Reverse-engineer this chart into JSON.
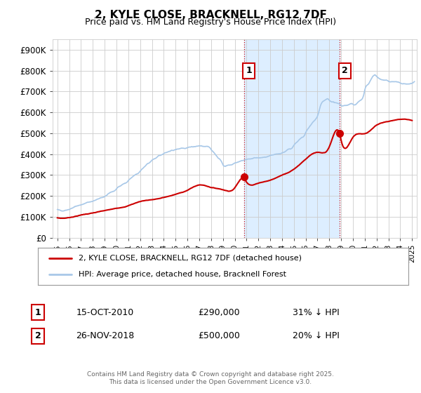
{
  "title": "2, KYLE CLOSE, BRACKNELL, RG12 7DF",
  "subtitle": "Price paid vs. HM Land Registry's House Price Index (HPI)",
  "ylim": [
    0,
    950000
  ],
  "yticks": [
    0,
    100000,
    200000,
    300000,
    400000,
    500000,
    600000,
    700000,
    800000,
    900000
  ],
  "ytick_labels": [
    "£0",
    "£100K",
    "£200K",
    "£300K",
    "£400K",
    "£500K",
    "£600K",
    "£700K",
    "£800K",
    "£900K"
  ],
  "xlim_start": 1994.6,
  "xlim_end": 2025.4,
  "hpi_color": "#a8c8e8",
  "price_color": "#cc0000",
  "purchase1_x": 2010.79,
  "purchase1_y": 290000,
  "purchase2_x": 2018.9,
  "purchase2_y": 500000,
  "shade_color": "#ddeeff",
  "legend_house": "2, KYLE CLOSE, BRACKNELL, RG12 7DF (detached house)",
  "legend_hpi": "HPI: Average price, detached house, Bracknell Forest",
  "annotation1_label": "1",
  "annotation1_date": "15-OCT-2010",
  "annotation1_price": "£290,000",
  "annotation1_pct": "31% ↓ HPI",
  "annotation2_label": "2",
  "annotation2_date": "26-NOV-2018",
  "annotation2_price": "£500,000",
  "annotation2_pct": "20% ↓ HPI",
  "footer": "Contains HM Land Registry data © Crown copyright and database right 2025.\nThis data is licensed under the Open Government Licence v3.0.",
  "background_color": "#ffffff",
  "grid_color": "#cccccc",
  "hpi_years": [
    1995.0,
    1995.1,
    1995.2,
    1995.3,
    1995.4,
    1995.5,
    1995.6,
    1995.7,
    1995.8,
    1995.9,
    1996.0,
    1996.2,
    1996.4,
    1996.6,
    1996.8,
    1997.0,
    1997.3,
    1997.6,
    1997.9,
    1998.0,
    1998.3,
    1998.6,
    1998.9,
    1999.0,
    1999.3,
    1999.6,
    1999.9,
    2000.0,
    2000.3,
    2000.6,
    2000.9,
    2001.0,
    2001.3,
    2001.6,
    2001.9,
    2002.0,
    2002.3,
    2002.6,
    2002.9,
    2003.0,
    2003.3,
    2003.6,
    2003.9,
    2004.0,
    2004.3,
    2004.6,
    2004.9,
    2005.0,
    2005.3,
    2005.6,
    2005.9,
    2006.0,
    2006.3,
    2006.6,
    2006.9,
    2007.0,
    2007.3,
    2007.6,
    2007.9,
    2008.0,
    2008.3,
    2008.6,
    2008.9,
    2009.0,
    2009.3,
    2009.6,
    2009.9,
    2010.0,
    2010.3,
    2010.6,
    2010.9,
    2011.0,
    2011.3,
    2011.6,
    2011.9,
    2012.0,
    2012.3,
    2012.6,
    2012.9,
    2013.0,
    2013.3,
    2013.6,
    2013.9,
    2014.0,
    2014.3,
    2014.6,
    2014.9,
    2015.0,
    2015.3,
    2015.6,
    2015.9,
    2016.0,
    2016.3,
    2016.6,
    2016.9,
    2017.0,
    2017.3,
    2017.6,
    2017.9,
    2018.0,
    2018.3,
    2018.6,
    2018.9,
    2019.0,
    2019.3,
    2019.6,
    2019.9,
    2020.0,
    2020.3,
    2020.6,
    2020.9,
    2021.0,
    2021.3,
    2021.6,
    2021.9,
    2022.0,
    2022.3,
    2022.6,
    2022.9,
    2023.0,
    2023.3,
    2023.6,
    2023.9,
    2024.0,
    2024.3,
    2024.6,
    2024.9,
    2025.0,
    2025.2
  ],
  "hpi_vals": [
    135000,
    133000,
    131000,
    130000,
    129000,
    130000,
    132000,
    134000,
    136000,
    138000,
    140000,
    145000,
    150000,
    155000,
    158000,
    162000,
    168000,
    174000,
    178000,
    180000,
    186000,
    192000,
    197000,
    200000,
    210000,
    220000,
    228000,
    235000,
    248000,
    260000,
    268000,
    275000,
    288000,
    300000,
    310000,
    318000,
    335000,
    350000,
    362000,
    368000,
    378000,
    388000,
    395000,
    400000,
    408000,
    415000,
    418000,
    420000,
    425000,
    430000,
    432000,
    435000,
    438000,
    440000,
    442000,
    443000,
    440000,
    437000,
    432000,
    425000,
    405000,
    385000,
    365000,
    352000,
    348000,
    352000,
    358000,
    362000,
    368000,
    372000,
    376000,
    378000,
    380000,
    382000,
    384000,
    383000,
    384000,
    385000,
    387000,
    388000,
    390000,
    392000,
    395000,
    398000,
    405000,
    415000,
    425000,
    435000,
    450000,
    465000,
    478000,
    490000,
    515000,
    540000,
    558000,
    568000,
    625000,
    640000,
    645000,
    638000,
    632000,
    625000,
    620000,
    615000,
    615000,
    618000,
    622000,
    618000,
    622000,
    638000,
    662000,
    688000,
    715000,
    745000,
    758000,
    752000,
    742000,
    738000,
    735000,
    730000,
    728000,
    725000,
    722000,
    718000,
    712000,
    710000,
    712000,
    714000,
    718000
  ],
  "prop_years": [
    1995.0,
    1996.0,
    1997.0,
    1998.0,
    1999.0,
    2000.0,
    2001.0,
    2002.0,
    2003.0,
    2004.0,
    2005.0,
    2006.0,
    2007.0,
    2008.0,
    2009.0,
    2010.0,
    2010.79,
    2011.0,
    2012.0,
    2013.0,
    2014.0,
    2015.0,
    2016.0,
    2017.0,
    2018.0,
    2018.9,
    2019.0,
    2020.0,
    2021.0,
    2022.0,
    2023.0,
    2024.0,
    2025.0
  ],
  "prop_vals": [
    95000,
    97000,
    110000,
    120000,
    130000,
    140000,
    155000,
    175000,
    185000,
    195000,
    210000,
    230000,
    255000,
    245000,
    235000,
    245000,
    290000,
    275000,
    270000,
    285000,
    310000,
    340000,
    390000,
    420000,
    445000,
    500000,
    475000,
    490000,
    510000,
    550000,
    570000,
    580000,
    575000
  ]
}
